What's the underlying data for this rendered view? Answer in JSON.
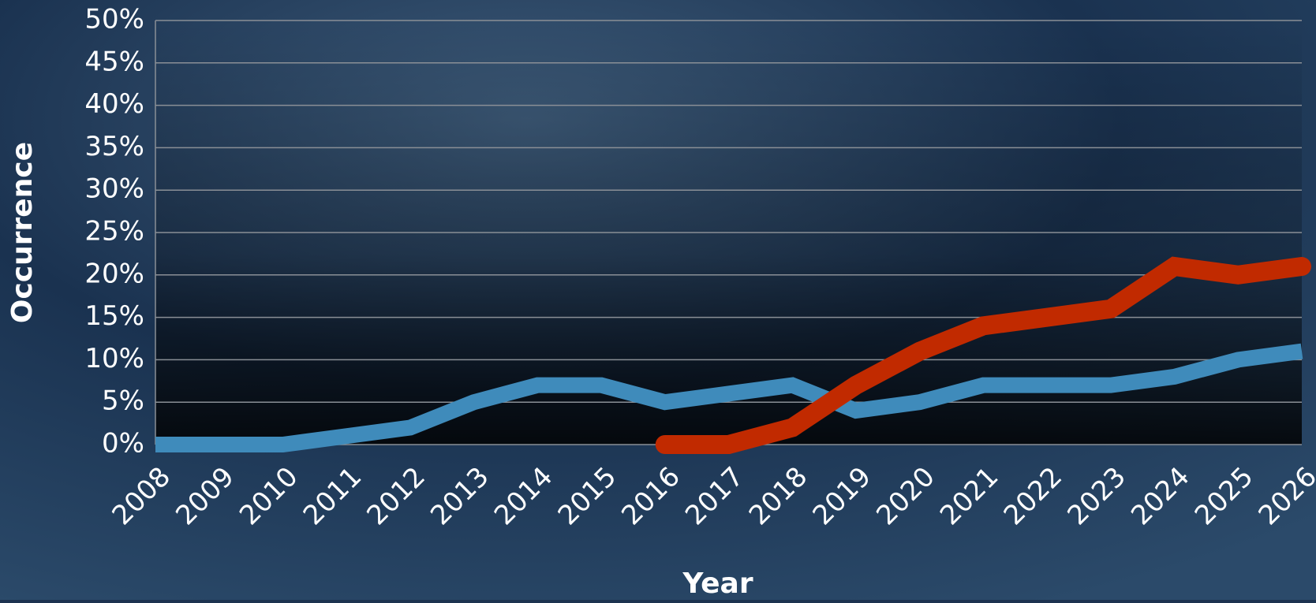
{
  "chart_data": {
    "type": "line",
    "x_label": "Year",
    "y_label": "Occurrence",
    "categories": [
      "2008",
      "2009",
      "2010",
      "2011",
      "2012",
      "2013",
      "2014",
      "2015",
      "2016",
      "2017",
      "2018",
      "2019",
      "2020",
      "2021",
      "2022",
      "2023",
      "2024",
      "2025",
      "2026"
    ],
    "series": [
      {
        "color": "#3f8bbb",
        "values": [
          0,
          0,
          0,
          1,
          2,
          5,
          7,
          7,
          5,
          6,
          7,
          4,
          5,
          7,
          7,
          7,
          8,
          10,
          11
        ]
      },
      {
        "color": "#c12a00",
        "values": [
          null,
          null,
          null,
          null,
          null,
          null,
          null,
          null,
          0,
          0,
          2,
          7,
          11,
          14,
          15,
          16,
          21,
          20,
          21
        ]
      }
    ],
    "ylim": [
      0,
      50
    ],
    "yticks": [
      {
        "value": 0,
        "label": "0%"
      },
      {
        "value": 5,
        "label": "5%"
      },
      {
        "value": 10,
        "label": "10%"
      },
      {
        "value": 15,
        "label": "15%"
      },
      {
        "value": 20,
        "label": "20%"
      },
      {
        "value": 25,
        "label": "25%"
      },
      {
        "value": 30,
        "label": "30%"
      },
      {
        "value": 35,
        "label": "35%"
      },
      {
        "value": 40,
        "label": "40%"
      },
      {
        "value": 45,
        "label": "45%"
      },
      {
        "value": 50,
        "label": "50%"
      }
    ],
    "grid": true
  }
}
